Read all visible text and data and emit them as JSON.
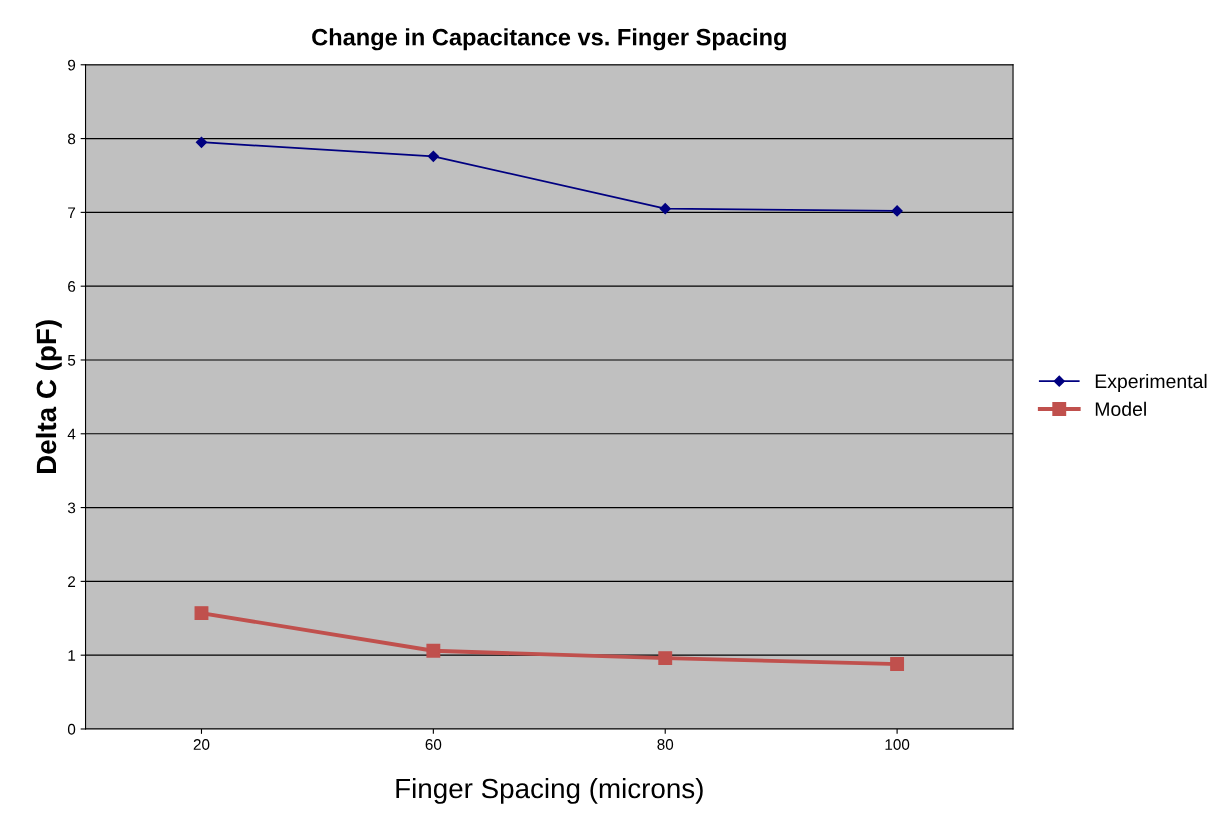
{
  "chart_data": {
    "type": "line",
    "title": "Change in Capacitance vs. Finger Spacing",
    "xlabel": "Finger Spacing (microns)",
    "ylabel": "Delta C (pF)",
    "categories": [
      "20",
      "60",
      "80",
      "100"
    ],
    "series": [
      {
        "name": "Experimental",
        "color": "#000080",
        "marker": "diamond",
        "values": [
          7.95,
          7.76,
          7.05,
          7.02
        ]
      },
      {
        "name": "Model",
        "color": "#c0504d",
        "marker": "square",
        "values": [
          1.57,
          1.06,
          0.96,
          0.88
        ]
      }
    ],
    "ylim": [
      0,
      9
    ],
    "yticks": [
      0,
      1,
      2,
      3,
      4,
      5,
      6,
      7,
      8,
      9
    ],
    "grid": "y",
    "legend": "right"
  }
}
